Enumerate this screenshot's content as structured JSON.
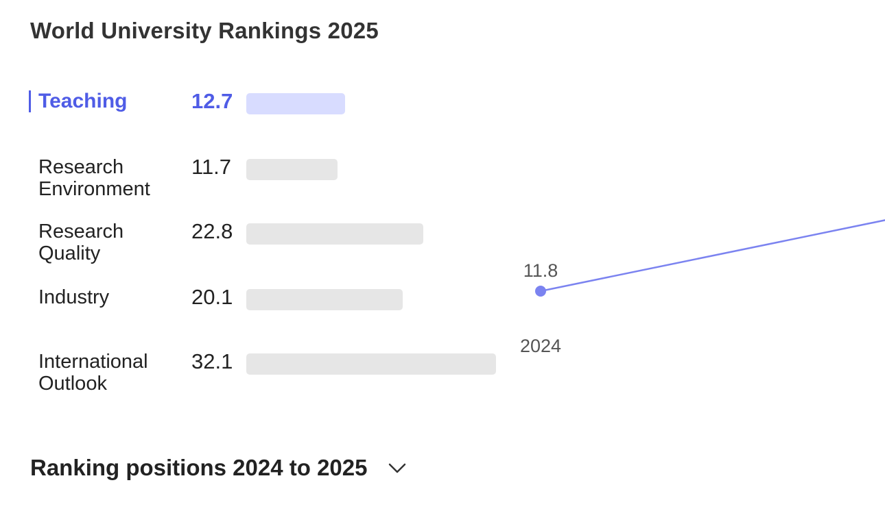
{
  "title": "World University Rankings 2025",
  "chart_data": {
    "type": "bar",
    "orientation": "horizontal",
    "categories": [
      "Teaching",
      "Research Environment",
      "Research Quality",
      "Industry",
      "International Outlook"
    ],
    "values": [
      12.7,
      11.7,
      22.8,
      20.1,
      32.1
    ],
    "value_labels": [
      "12.7",
      "11.7",
      "22.8",
      "20.1",
      "32.1"
    ],
    "selected": "Teaching",
    "colors": {
      "selected_text": "#4f5ce6",
      "selected_bar": "#d8dcff",
      "bar": "#e6e6e6",
      "trend_line": "#7b83f0"
    }
  },
  "trend_data": {
    "type": "line",
    "metric": "Teaching",
    "x": [
      "2024"
    ],
    "points": [
      {
        "x": "2024",
        "y": 11.8,
        "label": "11.8"
      }
    ],
    "x_tick_labels": [
      "2024"
    ],
    "continues_right": true
  },
  "section": {
    "title": "Ranking positions 2024 to 2025",
    "icon": "chevron-down-icon"
  }
}
